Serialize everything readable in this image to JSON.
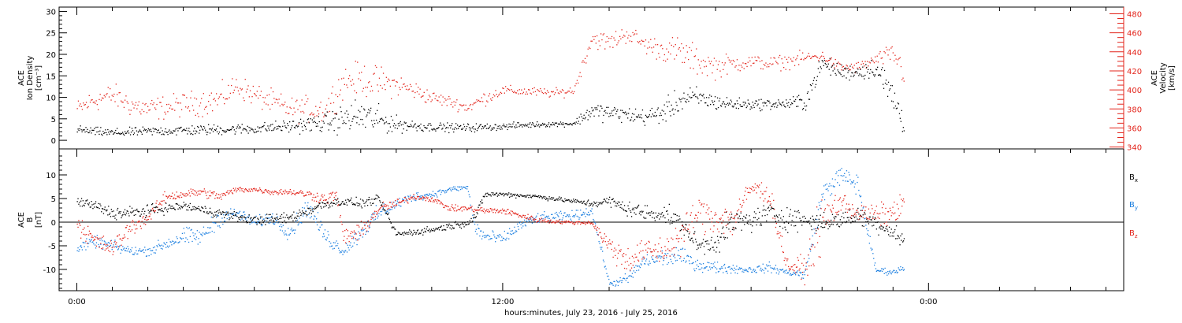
{
  "chart_data": [
    {
      "type": "scatter",
      "panel": "top",
      "ylabel_left": [
        "ACE",
        "Ion Density",
        "[cm⁻³]"
      ],
      "ylabel_right": [
        "ACE",
        "Velocity",
        "[km/s]"
      ],
      "yticks_left": [
        "0",
        "5",
        "10",
        "15",
        "20",
        "25",
        "30"
      ],
      "ylim_left": [
        -2,
        31
      ],
      "yticks_right": [
        "340",
        "360",
        "380",
        "400",
        "420",
        "440",
        "460",
        "480"
      ],
      "ylim_right": [
        338,
        487
      ],
      "series": [
        {
          "axis": "left",
          "color": "#000000",
          "t": [
            0.0,
            1.0,
            2.0,
            3.0,
            4.0,
            5.0,
            6.0,
            7.0,
            8.0,
            9.0,
            10.0,
            11.0,
            12.0,
            12.5,
            13.0,
            13.5,
            14.0,
            14.5,
            15.0,
            15.5,
            16.0,
            16.5,
            17.0,
            17.5,
            18.0,
            18.5,
            19.0,
            19.5,
            20.0,
            20.5,
            21.0,
            21.5,
            22.0,
            22.5,
            23.0,
            23.3
          ],
          "values": [
            2.5,
            1.8,
            2.2,
            2.4,
            2.6,
            2.8,
            3.4,
            4.2,
            5.8,
            3.8,
            3.2,
            3.0,
            3.3,
            3.6,
            3.8,
            3.9,
            4.0,
            7.0,
            6.5,
            6.0,
            5.5,
            6.5,
            9.5,
            10.0,
            9.0,
            8.5,
            8.5,
            8.5,
            8.6,
            9.0,
            18.0,
            16.0,
            16.0,
            17.0,
            10.0,
            4.0
          ],
          "spread": [
            0.8,
            0.8,
            0.8,
            1.0,
            1.0,
            1.0,
            1.2,
            1.8,
            3.5,
            1.5,
            0.8,
            0.8,
            0.6,
            0.6,
            0.5,
            0.5,
            0.5,
            1.8,
            1.5,
            1.5,
            1.5,
            2.0,
            2.5,
            2.0,
            1.5,
            1.2,
            1.0,
            1.0,
            1.0,
            2.0,
            1.5,
            1.5,
            1.5,
            2.0,
            4.0,
            2.0
          ]
        },
        {
          "axis": "right",
          "color": "#e3241b",
          "t": [
            0.0,
            0.5,
            1.0,
            1.5,
            2.0,
            3.0,
            4.0,
            4.5,
            5.0,
            6.0,
            7.0,
            7.5,
            8.0,
            8.5,
            9.0,
            9.5,
            10.0,
            10.5,
            11.0,
            11.5,
            12.0,
            12.5,
            13.0,
            13.5,
            14.0,
            14.5,
            15.0,
            15.5,
            16.0,
            16.5,
            17.0,
            17.5,
            18.0,
            18.5,
            19.0,
            19.5,
            20.0,
            20.5,
            21.0,
            21.5,
            22.0,
            22.5,
            23.0,
            23.3
          ],
          "values": [
            380,
            390,
            395,
            385,
            380,
            385,
            390,
            405,
            395,
            380,
            380,
            410,
            412,
            408,
            406,
            400,
            392,
            388,
            382,
            392,
            400,
            399,
            398,
            397,
            400,
            455,
            450,
            460,
            448,
            443,
            440,
            430,
            425,
            428,
            430,
            428,
            430,
            434,
            436,
            424,
            424,
            432,
            438,
            420
          ],
          "spread": [
            8,
            10,
            10,
            10,
            10,
            10,
            12,
            10,
            10,
            10,
            12,
            14,
            14,
            14,
            10,
            8,
            6,
            5,
            5,
            6,
            4,
            4,
            4,
            4,
            4,
            8,
            8,
            8,
            8,
            10,
            14,
            12,
            10,
            8,
            6,
            6,
            6,
            6,
            4,
            5,
            5,
            5,
            10,
            15
          ]
        }
      ]
    },
    {
      "type": "scatter",
      "panel": "bottom",
      "ylabel_left": [
        "ACE",
        "B",
        "[nT]"
      ],
      "yticks_left": [
        "-10",
        "-5",
        "0",
        "5",
        "10"
      ],
      "ylim_left": [
        -14.5,
        15.5
      ],
      "zero_line": true,
      "legend_position": "right",
      "series": [
        {
          "name": "Bx",
          "color": "#000000",
          "t": [
            0.0,
            0.5,
            1.0,
            1.5,
            2.0,
            2.5,
            3.0,
            4.0,
            5.0,
            6.0,
            7.0,
            7.5,
            8.0,
            8.5,
            9.0,
            10.0,
            11.0,
            11.2,
            11.5,
            12.0,
            13.0,
            14.0,
            14.5,
            15.0,
            15.5,
            16.0,
            16.5,
            17.0,
            17.5,
            18.0,
            18.5,
            19.0,
            19.5,
            20.0,
            20.5,
            21.0,
            21.5,
            22.0,
            22.5,
            23.0,
            23.3
          ],
          "values": [
            4.5,
            3.5,
            2.0,
            2.0,
            2.5,
            3.0,
            3.5,
            2.0,
            0.5,
            1.0,
            4.0,
            4.5,
            4.0,
            5.0,
            -2.5,
            -1.5,
            0.0,
            1.0,
            6.0,
            6.0,
            5.5,
            4.5,
            4.0,
            4.5,
            3.0,
            2.0,
            2.0,
            0.0,
            -5.0,
            -4.0,
            0.0,
            0.5,
            2.0,
            1.0,
            0.5,
            0.0,
            0.5,
            1.5,
            0.0,
            -2.0,
            -4.0
          ],
          "spread": [
            0.8,
            1.0,
            1.0,
            1.2,
            1.0,
            0.8,
            0.8,
            0.8,
            0.8,
            1.0,
            0.8,
            0.8,
            0.8,
            0.6,
            0.6,
            0.6,
            0.6,
            0.8,
            0.5,
            0.4,
            0.4,
            0.4,
            0.6,
            1.0,
            1.2,
            1.5,
            1.5,
            1.5,
            1.5,
            2.0,
            2.5,
            2.0,
            2.0,
            2.0,
            2.0,
            1.5,
            1.5,
            1.5,
            1.5,
            1.5,
            1.5
          ]
        },
        {
          "name": "By",
          "color": "#1c7fe0",
          "t": [
            0.0,
            0.5,
            1.0,
            1.5,
            2.0,
            3.0,
            3.5,
            4.0,
            4.5,
            5.0,
            5.5,
            6.0,
            6.5,
            7.0,
            7.5,
            8.0,
            8.5,
            9.0,
            9.5,
            10.0,
            10.5,
            11.0,
            11.2,
            11.5,
            12.0,
            12.5,
            13.0,
            14.0,
            14.5,
            15.0,
            15.5,
            16.0,
            17.0,
            17.5,
            18.0,
            19.0,
            19.5,
            20.0,
            20.5,
            21.0,
            21.5,
            22.0,
            22.5,
            23.0,
            23.3
          ],
          "values": [
            -5.5,
            -4.0,
            -5.0,
            -6.0,
            -6.0,
            -3.0,
            -3.0,
            1.0,
            2.0,
            0.0,
            1.0,
            -2.0,
            3.5,
            -3.0,
            -6.0,
            -2.0,
            2.0,
            4.0,
            5.5,
            6.0,
            7.0,
            7.5,
            -1.0,
            -3.0,
            -3.5,
            -0.5,
            1.0,
            1.5,
            2.5,
            -13.0,
            -12.0,
            -8.0,
            -7.0,
            -9.0,
            -9.5,
            -10.0,
            -9.5,
            -10.5,
            -11.0,
            6.0,
            10.0,
            8.0,
            -10.0,
            -10.5,
            -9.5
          ],
          "spread": [
            0.8,
            1.0,
            1.0,
            0.8,
            0.8,
            1.5,
            1.5,
            1.5,
            1.0,
            1.0,
            1.0,
            1.5,
            1.5,
            1.5,
            1.0,
            1.5,
            1.5,
            1.0,
            0.8,
            0.6,
            0.5,
            0.4,
            1.5,
            1.2,
            1.0,
            1.0,
            0.8,
            0.8,
            0.8,
            0.5,
            1.0,
            1.5,
            1.5,
            1.0,
            1.0,
            0.6,
            0.8,
            0.6,
            0.8,
            2.0,
            1.5,
            2.0,
            0.6,
            0.5,
            0.5
          ]
        },
        {
          "name": "Bz",
          "color": "#e3241b",
          "t": [
            0.0,
            0.5,
            1.0,
            1.5,
            2.0,
            2.5,
            3.0,
            3.5,
            4.0,
            4.5,
            5.0,
            5.5,
            6.0,
            6.5,
            7.0,
            7.3,
            7.5,
            8.0,
            8.5,
            9.0,
            9.5,
            10.0,
            10.5,
            11.0,
            11.5,
            12.0,
            12.5,
            13.0,
            13.5,
            14.0,
            14.5,
            15.0,
            15.5,
            16.0,
            16.5,
            17.0,
            17.5,
            18.0,
            18.5,
            19.0,
            19.5,
            20.0,
            20.5,
            21.0,
            21.5,
            22.0,
            22.5,
            23.0,
            23.3
          ],
          "values": [
            0.0,
            -4.0,
            -5.5,
            -1.0,
            1.0,
            5.5,
            6.0,
            6.5,
            5.5,
            7.0,
            7.0,
            6.5,
            6.5,
            6.0,
            5.0,
            6.0,
            -3.0,
            -2.0,
            3.0,
            4.0,
            5.5,
            5.0,
            3.0,
            3.0,
            2.5,
            2.5,
            1.5,
            0.5,
            0.2,
            0.0,
            0.0,
            -5.0,
            -8.0,
            -6.0,
            -6.0,
            -3.0,
            2.0,
            1.0,
            0.5,
            7.5,
            6.0,
            -9.0,
            -10.0,
            0.0,
            4.5,
            2.0,
            1.5,
            2.0,
            4.0
          ],
          "spread": [
            2.0,
            1.5,
            1.5,
            1.5,
            1.0,
            1.0,
            0.8,
            0.8,
            0.8,
            0.5,
            0.5,
            0.5,
            0.5,
            0.8,
            1.0,
            1.0,
            1.5,
            1.5,
            1.0,
            0.8,
            0.5,
            0.5,
            0.5,
            0.5,
            0.6,
            0.5,
            0.5,
            0.5,
            0.3,
            0.3,
            0.3,
            2.0,
            2.5,
            2.0,
            2.5,
            3.0,
            3.0,
            3.0,
            3.0,
            1.5,
            2.0,
            1.5,
            2.0,
            5.0,
            2.0,
            1.5,
            2.0,
            2.0,
            2.0
          ]
        }
      ]
    }
  ],
  "x_axis": {
    "label": "hours:minutes, July 23, 2016 - July 25, 2016",
    "ticks": [
      {
        "t": 0,
        "label": "0:00"
      },
      {
        "t": 12,
        "label": "12:00"
      },
      {
        "t": 24,
        "label": "0:00"
      }
    ],
    "t_range": [
      -0.5,
      29.5
    ]
  },
  "legend": {
    "bx": {
      "base": "B",
      "sub": "x"
    },
    "by": {
      "base": "B",
      "sub": "y"
    },
    "bz": {
      "base": "B",
      "sub": "z"
    }
  },
  "colors": {
    "black": "#000000",
    "red": "#e3241b",
    "blue": "#1c7fe0"
  }
}
